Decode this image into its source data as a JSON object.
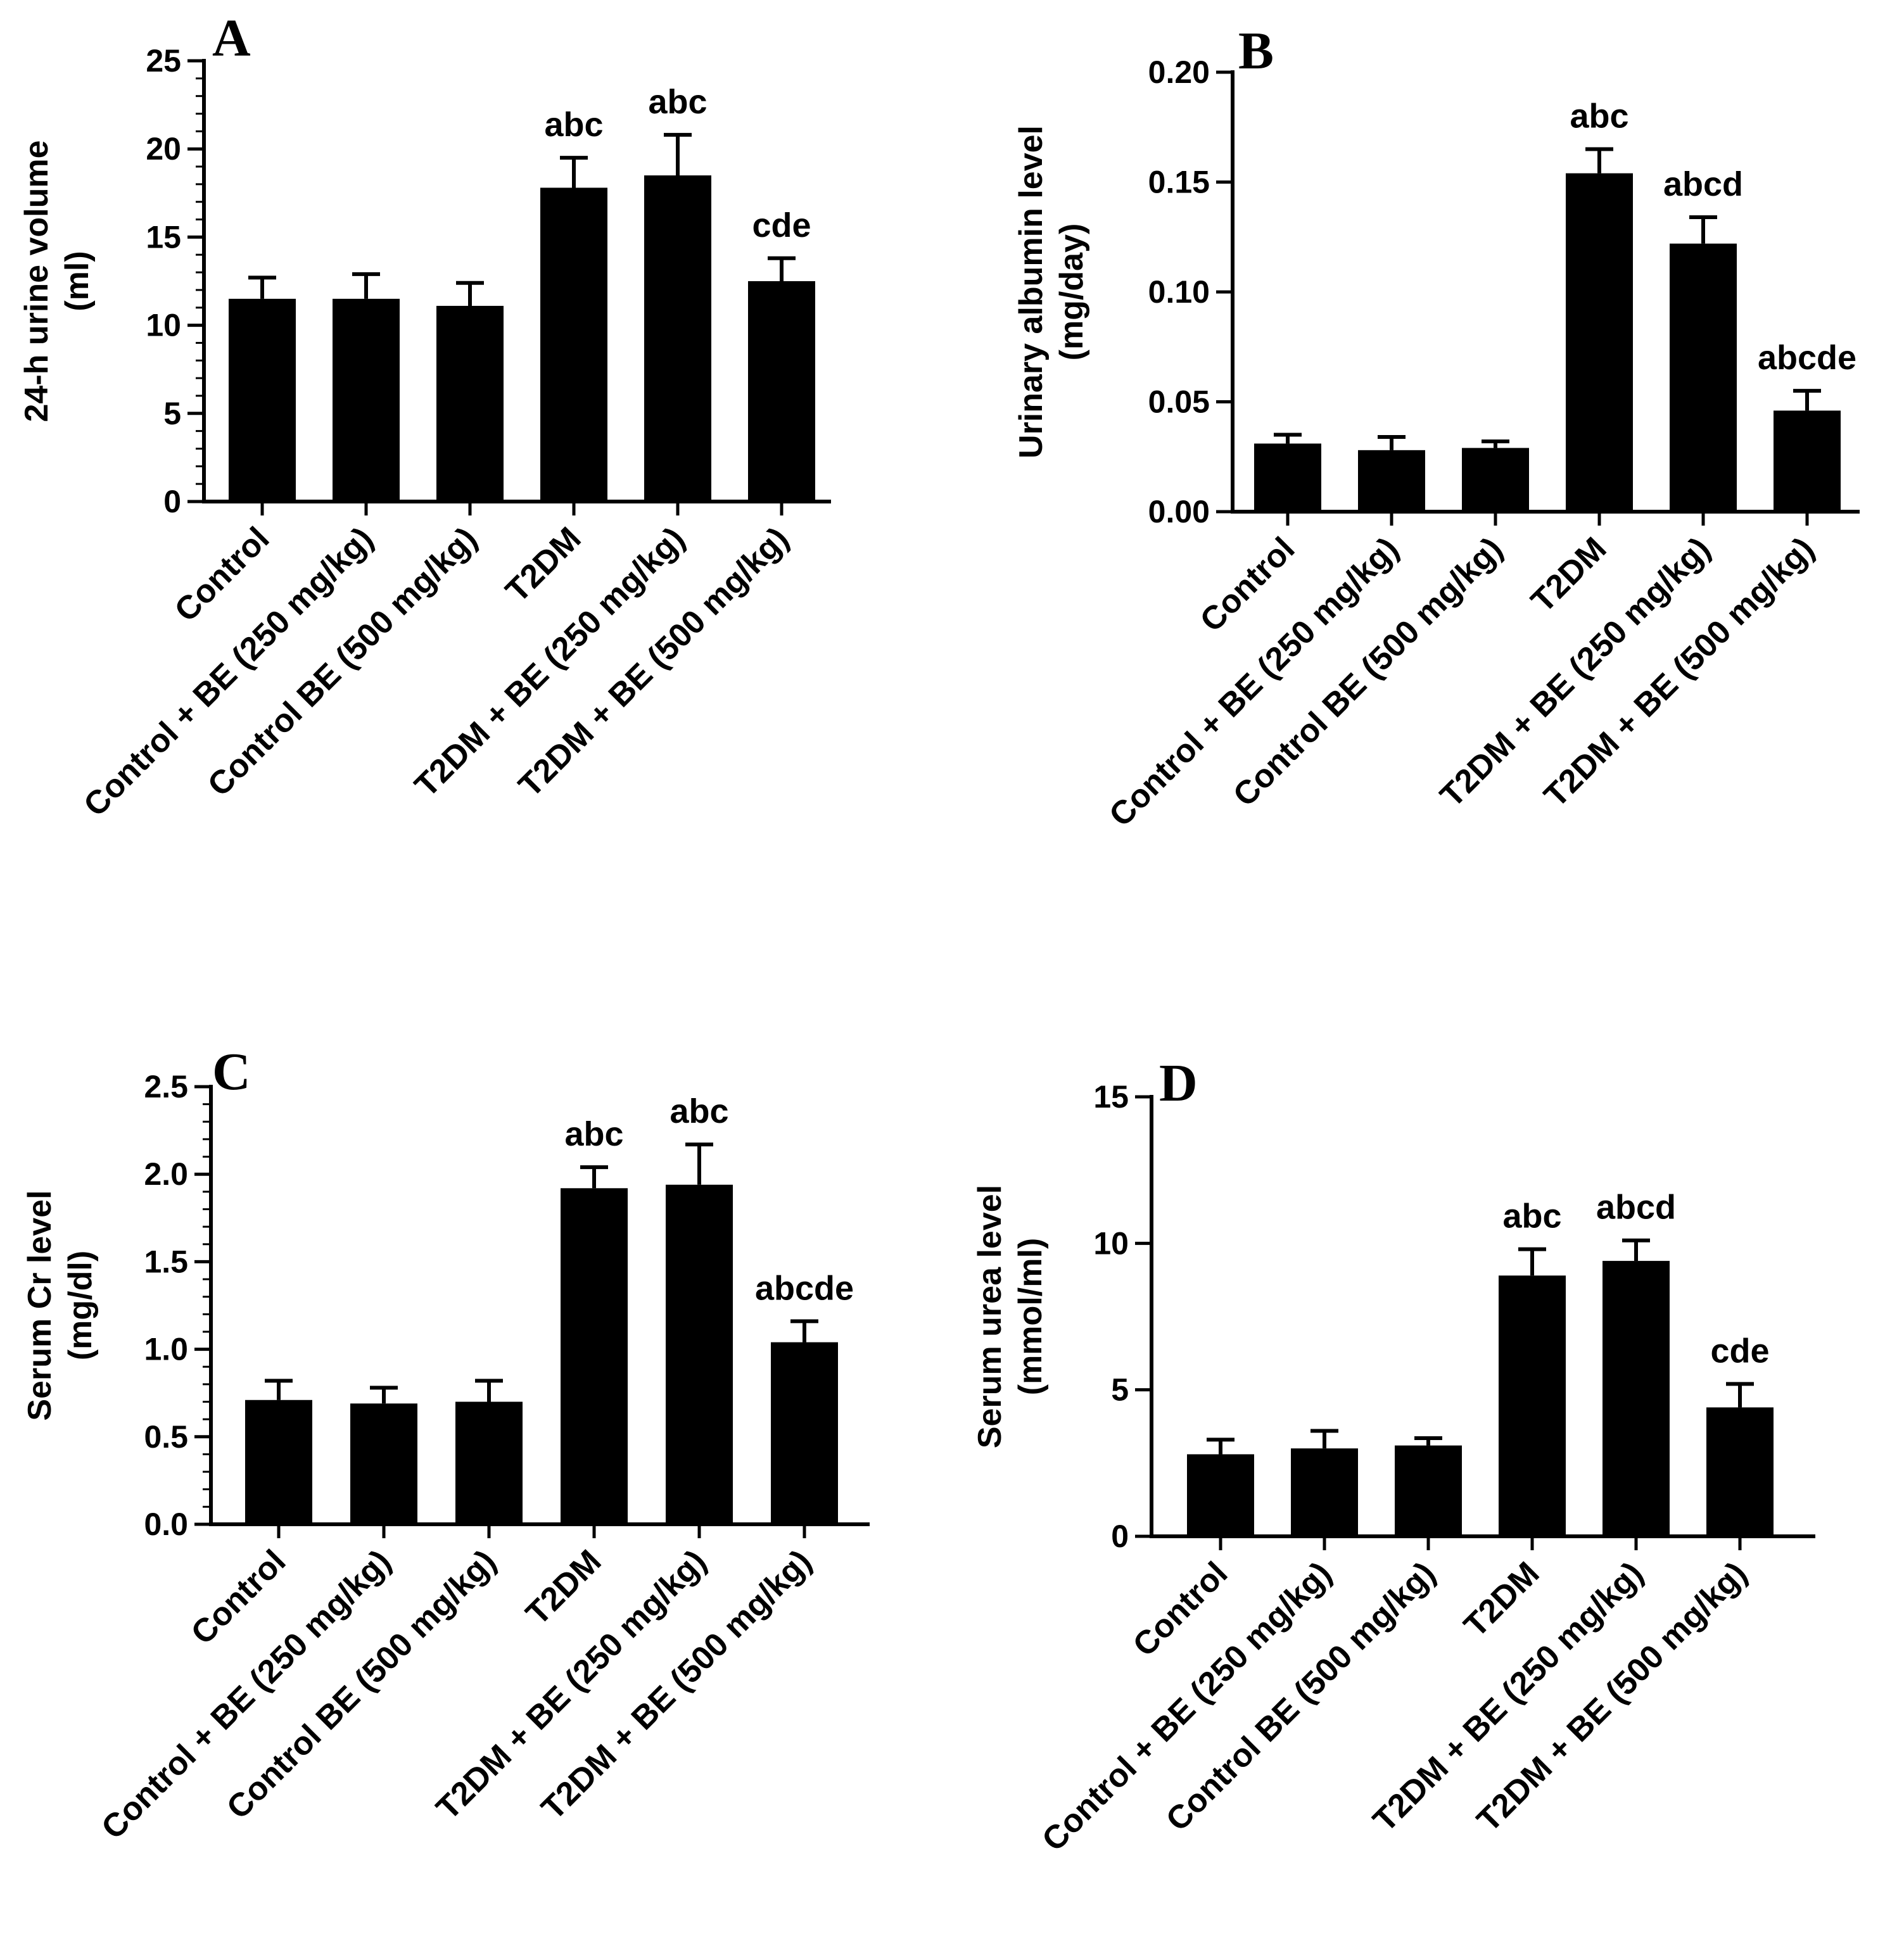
{
  "chart_data": [
    {
      "type": "bar",
      "panel": "A",
      "ylabel": [
        "24-h urine volume",
        "(ml)"
      ],
      "ylim": [
        0,
        25
      ],
      "yticks": [
        0,
        5,
        10,
        15,
        20,
        25
      ],
      "yticklabels": [
        "0",
        "5",
        "10",
        "15",
        "20",
        "25"
      ],
      "minor_per_major": 5,
      "categories": [
        "Control",
        "Control + BE (250 mg/kg)",
        "Control BE (500 mg/kg)",
        "T2DM",
        "T2DM + BE (250 mg/kg)",
        "T2DM + BE (500 mg/kg)"
      ],
      "values": [
        11.5,
        11.5,
        11.1,
        17.8,
        18.5,
        12.5
      ],
      "errors": [
        1.2,
        1.4,
        1.3,
        1.7,
        2.3,
        1.3
      ],
      "annotations": [
        "",
        "",
        "",
        "abc",
        "abc",
        "cde"
      ]
    },
    {
      "type": "bar",
      "panel": "B",
      "ylabel": [
        "Urinary albumin level",
        "(mg/day)"
      ],
      "ylim": [
        0,
        0.2
      ],
      "yticks": [
        0,
        0.05,
        0.1,
        0.15,
        0.2
      ],
      "yticklabels": [
        "0.00",
        "0.05",
        "0.10",
        "0.15",
        "0.20"
      ],
      "minor_per_major": 1,
      "categories": [
        "Control",
        "Control + BE (250 mg/kg)",
        "Control BE (500 mg/kg)",
        "T2DM",
        "T2DM + BE (250 mg/kg)",
        "T2DM + BE (500 mg/kg)"
      ],
      "values": [
        0.031,
        0.028,
        0.029,
        0.154,
        0.122,
        0.046
      ],
      "errors": [
        0.004,
        0.006,
        0.003,
        0.011,
        0.012,
        0.009
      ],
      "annotations": [
        "",
        "",
        "",
        "abc",
        "abcd",
        "abcde"
      ]
    },
    {
      "type": "bar",
      "panel": "C",
      "ylabel": [
        "Serum Cr level",
        "(mg/dl)"
      ],
      "ylim": [
        0,
        2.5
      ],
      "yticks": [
        0,
        0.5,
        1.0,
        1.5,
        2.0,
        2.5
      ],
      "yticklabels": [
        "0.0",
        "0.5",
        "1.0",
        "1.5",
        "2.0",
        "2.5"
      ],
      "minor_per_major": 5,
      "categories": [
        "Control",
        "Control + BE (250 mg/kg)",
        "Control BE (500 mg/kg)",
        "T2DM",
        "T2DM + BE (250 mg/kg)",
        "T2DM + BE (500 mg/kg)"
      ],
      "values": [
        0.71,
        0.69,
        0.7,
        1.92,
        1.94,
        1.04
      ],
      "errors": [
        0.11,
        0.09,
        0.12,
        0.12,
        0.23,
        0.12
      ],
      "annotations": [
        "",
        "",
        "",
        "abc",
        "abc",
        "abcde"
      ]
    },
    {
      "type": "bar",
      "panel": "D",
      "ylabel": [
        "Serum urea level",
        "(mmol/ml)"
      ],
      "ylim": [
        0,
        15
      ],
      "yticks": [
        0,
        5,
        10,
        15
      ],
      "yticklabels": [
        "0",
        "5",
        "10",
        "15"
      ],
      "minor_per_major": 1,
      "categories": [
        "Control",
        "Control + BE (250 mg/kg)",
        "Control BE (500 mg/kg)",
        "T2DM",
        "T2DM + BE (250 mg/kg)",
        "T2DM + BE (500 mg/kg)"
      ],
      "values": [
        2.8,
        3.0,
        3.1,
        8.9,
        9.4,
        4.4
      ],
      "errors": [
        0.5,
        0.6,
        0.25,
        0.9,
        0.7,
        0.8
      ],
      "annotations": [
        "",
        "",
        "",
        "abc",
        "abcd",
        "cde"
      ]
    }
  ]
}
